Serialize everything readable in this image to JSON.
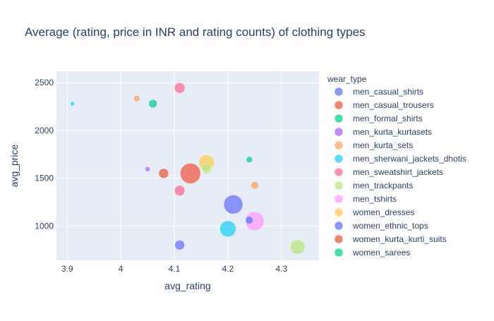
{
  "chart_data": {
    "type": "scatter",
    "title": "Average (rating, price in INR and rating counts) of clothing types",
    "xlabel": "avg_rating",
    "ylabel": "avg_price",
    "xlim": [
      3.88,
      4.37
    ],
    "ylim": [
      640,
      2620
    ],
    "x_ticks": [
      3.9,
      4.0,
      4.1,
      4.2,
      4.3
    ],
    "x_tick_labels": [
      "3.9",
      "4",
      "4.1",
      "4.2",
      "4.3"
    ],
    "y_ticks": [
      1000,
      1500,
      2000,
      2500
    ],
    "y_tick_labels": [
      "1000",
      "1500",
      "2000",
      "2500"
    ],
    "grid": true,
    "plot_background": "#e5ecf6",
    "legend_title": "wear_type",
    "legend_position": "right",
    "series": [
      {
        "name": "men_casual_shirts",
        "color": "#636efa",
        "points": [
          {
            "x": 4.11,
            "y": 800,
            "size": 14
          }
        ]
      },
      {
        "name": "men_casual_trousers",
        "color": "#ef553b",
        "points": [
          {
            "x": 4.08,
            "y": 1550,
            "size": 14
          }
        ]
      },
      {
        "name": "men_formal_shirts",
        "color": "#00cc96",
        "points": [
          {
            "x": 4.06,
            "y": 2280,
            "size": 12
          }
        ]
      },
      {
        "name": "men_kurta_kurtasets",
        "color": "#ab63fa",
        "points": [
          {
            "x": 4.05,
            "y": 1595,
            "size": 7
          }
        ]
      },
      {
        "name": "men_kurta_sets",
        "color": "#ffa15a",
        "points": [
          {
            "x": 4.03,
            "y": 2335,
            "size": 9
          },
          {
            "x": 4.25,
            "y": 1425,
            "size": 11
          }
        ]
      },
      {
        "name": "men_sherwani_jackets_dhotis",
        "color": "#19d3f3",
        "points": [
          {
            "x": 3.91,
            "y": 2280,
            "size": 6
          },
          {
            "x": 4.2,
            "y": 970,
            "size": 23
          }
        ]
      },
      {
        "name": "men_sweatshirt_jackets",
        "color": "#ff6692",
        "points": [
          {
            "x": 4.11,
            "y": 2445,
            "size": 15
          },
          {
            "x": 4.11,
            "y": 1370,
            "size": 15
          }
        ]
      },
      {
        "name": "men_trackpants",
        "color": "#b6e880",
        "points": [
          {
            "x": 4.16,
            "y": 1600,
            "size": 14
          },
          {
            "x": 4.33,
            "y": 780,
            "size": 21
          }
        ]
      },
      {
        "name": "men_tshirts",
        "color": "#ff97ff",
        "points": [
          {
            "x": 4.25,
            "y": 1050,
            "size": 27
          }
        ]
      },
      {
        "name": "women_dresses",
        "color": "#fecb52",
        "points": [
          {
            "x": 4.16,
            "y": 1665,
            "size": 22
          }
        ]
      },
      {
        "name": "women_ethnic_tops",
        "color": "#636efa",
        "points": [
          {
            "x": 4.21,
            "y": 1225,
            "size": 27
          },
          {
            "x": 4.24,
            "y": 1060,
            "size": 11
          }
        ]
      },
      {
        "name": "women_kurta_kurti_suits",
        "color": "#ef553b",
        "points": [
          {
            "x": 4.13,
            "y": 1550,
            "size": 29
          }
        ]
      },
      {
        "name": "women_sarees",
        "color": "#00cc96",
        "points": [
          {
            "x": 4.24,
            "y": 1695,
            "size": 9
          }
        ]
      }
    ]
  }
}
